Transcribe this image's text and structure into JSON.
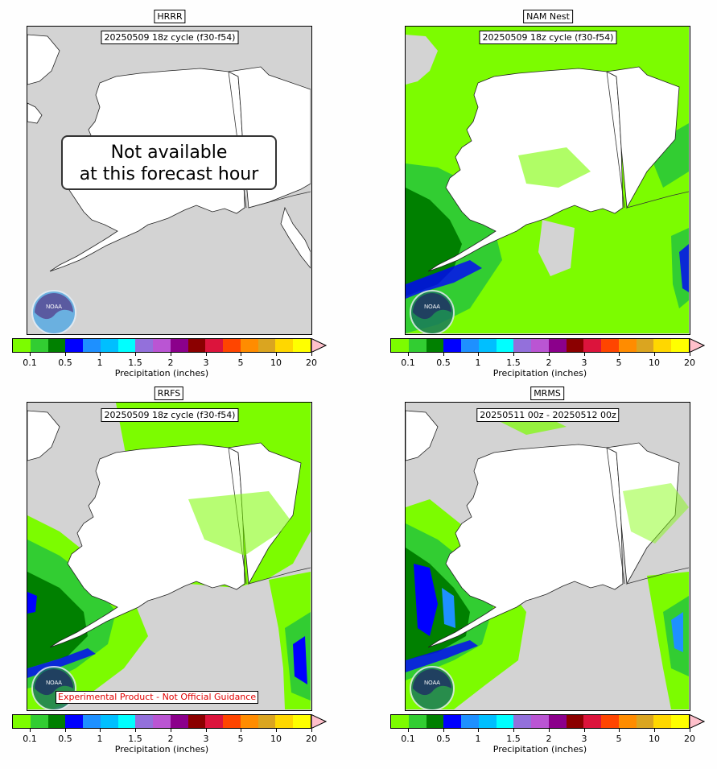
{
  "panels": {
    "hrrr": {
      "title": "HRRR",
      "cycle": "20250509 18z cycle (f30-f54)",
      "overlay": [
        "Not available",
        "at this forecast hour"
      ]
    },
    "nam": {
      "title": "NAM Nest",
      "cycle": "20250509 18z cycle (f30-f54)"
    },
    "rrfs": {
      "title": "RRFS",
      "cycle": "20250509 18z cycle (f30-f54)",
      "disclaimer": "Experimental Product - Not Official Guidance"
    },
    "mrms": {
      "title": "MRMS",
      "cycle": "20250511 00z - 20250512 00z"
    }
  },
  "logo": {
    "text": "NOAA"
  },
  "colorbar": {
    "label": "Precipitation (inches)",
    "ticks": [
      "0.1",
      "0.5",
      "1",
      "1.5",
      "2",
      "3",
      "5",
      "10",
      "20"
    ],
    "colors": [
      "#7cfc00",
      "#32cd32",
      "#008000",
      "#0000ff",
      "#1e90ff",
      "#00bfff",
      "#00ffff",
      "#9370db",
      "#ba55d3",
      "#8b008b",
      "#8b0000",
      "#dc143c",
      "#ff4500",
      "#ff8c00",
      "#daa520",
      "#ffd700",
      "#ffff00"
    ],
    "extend_color": "#ffc0cb"
  },
  "map_colors": {
    "ocean": "#d3d3d3",
    "land": "#ffffff",
    "light_green": "#7cfc00",
    "mid_green": "#32cd32",
    "dark_green": "#008000",
    "blue": "#0000ff"
  }
}
